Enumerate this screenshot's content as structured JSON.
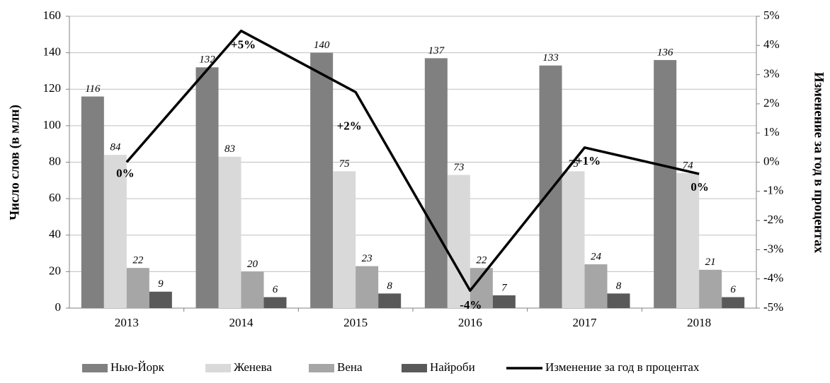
{
  "chart_data": {
    "type": "bar_line",
    "y_label": "Число слов (в млн)",
    "y2_label": "Изменение за год в процентах",
    "categories": [
      "2013",
      "2014",
      "2015",
      "2016",
      "2017",
      "2018"
    ],
    "series": [
      {
        "name": "Нью-Йорк",
        "color": "#808080",
        "values": [
          116,
          132,
          140,
          137,
          133,
          136
        ]
      },
      {
        "name": "Женева",
        "color": "#d9d9d9",
        "values": [
          84,
          83,
          75,
          73,
          75,
          74
        ]
      },
      {
        "name": "Вена",
        "color": "#a6a6a6",
        "values": [
          22,
          20,
          23,
          22,
          24,
          21
        ]
      },
      {
        "name": "Найроби",
        "color": "#595959",
        "values": [
          9,
          6,
          8,
          7,
          8,
          6
        ]
      },
      {
        "name": "Изменение за год в процентах",
        "color": "#000000",
        "axis": "y2",
        "type": "line",
        "values": [
          0,
          4.5,
          2.4,
          -4.4,
          0.5,
          -0.4
        ],
        "value_labels": [
          "0%",
          "+5%",
          "+2%",
          "-4%",
          "+1%",
          "0%"
        ]
      }
    ],
    "ylim": [
      0,
      160
    ],
    "yticks": [
      0,
      20,
      40,
      60,
      80,
      100,
      120,
      140,
      160
    ],
    "y2lim": [
      -5,
      5
    ],
    "y2ticks": [
      {
        "value": -5,
        "label": "-5%"
      },
      {
        "value": -4,
        "label": "-4%"
      },
      {
        "value": -3,
        "label": "-3%"
      },
      {
        "value": -2,
        "label": "-2%"
      },
      {
        "value": -1,
        "label": "-1%"
      },
      {
        "value": 0,
        "label": "0%"
      },
      {
        "value": 1,
        "label": "1%"
      },
      {
        "value": 2,
        "label": "2%"
      },
      {
        "value": 3,
        "label": "3%"
      },
      {
        "value": 4,
        "label": "4%"
      },
      {
        "value": 5,
        "label": "5%"
      }
    ],
    "grid": true
  }
}
